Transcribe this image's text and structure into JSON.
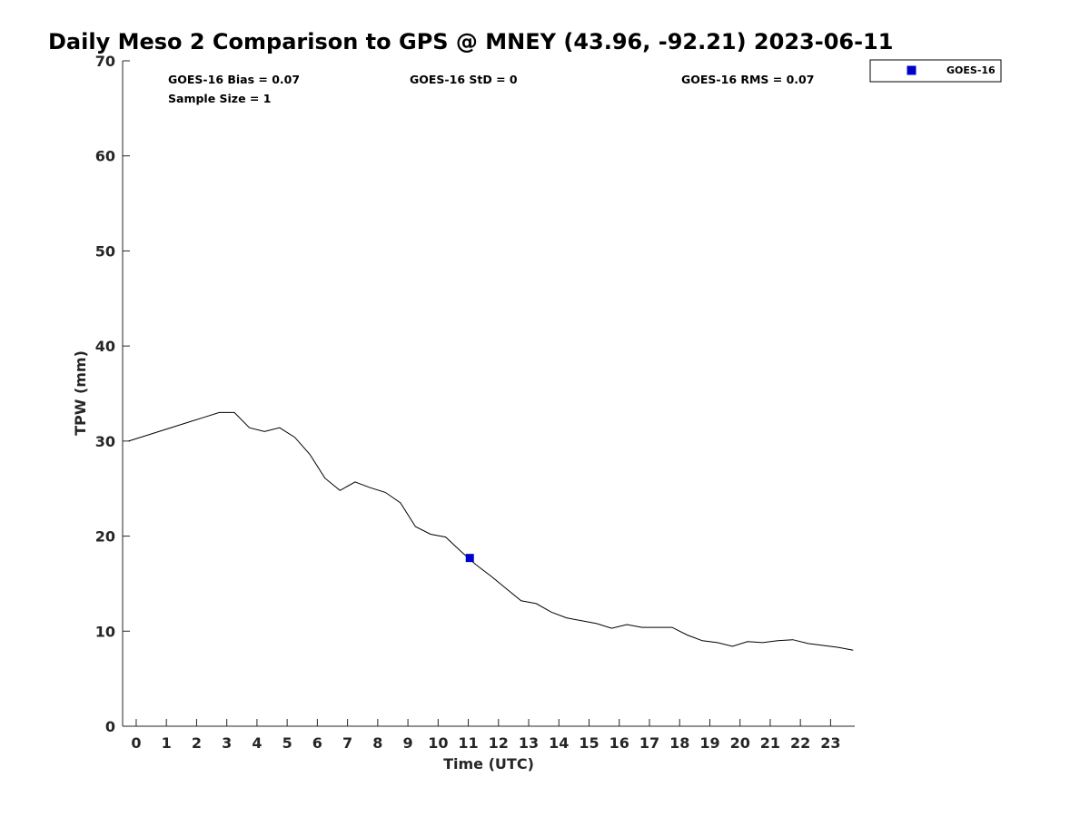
{
  "chart_data": {
    "type": "line",
    "title": "Daily Meso 2 Comparison to GPS @ MNEY (43.96, -92.21) 2023-06-11",
    "xlabel": "Time (UTC)",
    "ylabel": "TPW (mm)",
    "xlim": [
      -0.45,
      23.8
    ],
    "ylim": [
      0,
      70
    ],
    "x_ticks": [
      0,
      1,
      2,
      3,
      4,
      5,
      6,
      7,
      8,
      9,
      10,
      11,
      12,
      13,
      14,
      15,
      16,
      17,
      18,
      19,
      20,
      21,
      22,
      23
    ],
    "y_ticks": [
      0,
      10,
      20,
      30,
      40,
      50,
      60,
      70
    ],
    "grid": false,
    "stats": {
      "bias": "GOES-16 Bias = 0.07",
      "std": "GOES-16 StD = 0",
      "rms": "GOES-16 RMS = 0.07",
      "sample": "Sample Size = 1"
    },
    "legend": {
      "placement": "top-right",
      "entries": [
        {
          "name": "GOES-16",
          "marker": "square",
          "color": "#0000cc"
        }
      ]
    },
    "series": [
      {
        "type": "line",
        "color": "#000000",
        "x": [
          -0.25,
          0.25,
          0.75,
          1.25,
          1.75,
          2.25,
          2.75,
          3.25,
          3.75,
          4.25,
          4.75,
          5.25,
          5.75,
          6.25,
          6.75,
          7.25,
          7.75,
          8.25,
          8.75,
          9.25,
          9.75,
          10.25,
          10.75,
          11.25,
          11.75,
          12.25,
          12.75,
          13.25,
          13.75,
          14.25,
          14.75,
          15.25,
          15.75,
          16.25,
          16.75,
          17.25,
          17.75,
          18.25,
          18.75,
          19.25,
          19.75,
          20.25,
          20.75,
          21.25,
          21.75,
          22.25,
          22.75,
          23.25,
          23.75
        ],
        "y": [
          30.0,
          30.5,
          31.0,
          31.5,
          32.0,
          32.5,
          33.0,
          33.0,
          31.4,
          31.0,
          31.4,
          30.4,
          28.6,
          26.1,
          24.8,
          25.7,
          25.1,
          24.6,
          23.5,
          21.0,
          20.2,
          19.9,
          18.4,
          17.0,
          15.8,
          14.5,
          13.2,
          12.9,
          12.0,
          11.4,
          11.1,
          10.8,
          10.3,
          10.7,
          10.4,
          10.4,
          10.4,
          9.6,
          9.0,
          8.8,
          8.4,
          8.9,
          8.8,
          9.0,
          9.1,
          8.7,
          8.5,
          8.3,
          8.0
        ]
      },
      {
        "type": "scatter",
        "name": "GOES-16",
        "color": "#0000cc",
        "marker": "square",
        "x": [
          11.05
        ],
        "y": [
          17.7
        ]
      }
    ]
  }
}
